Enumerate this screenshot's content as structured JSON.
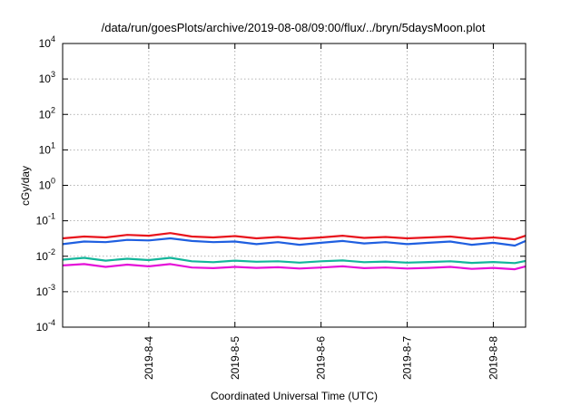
{
  "chart_data": {
    "type": "line",
    "title": "/data/run/goesPlots/archive/2019-08-08/09:00/flux/../bryn/5daysMoon.plot",
    "xlabel": "Coordinated Universal Time (UTC)",
    "ylabel": "cGy/day",
    "yscale": "log",
    "ylim": [
      0.0001,
      10000
    ],
    "xlim": [
      "2019-08-03T00:00",
      "2019-08-08T09:00"
    ],
    "grid": true,
    "y_ticks": [
      {
        "value": 0.0001,
        "base": "10",
        "exp": "-4"
      },
      {
        "value": 0.001,
        "base": "10",
        "exp": "-3"
      },
      {
        "value": 0.01,
        "base": "10",
        "exp": "-2"
      },
      {
        "value": 0.1,
        "base": "10",
        "exp": "-1"
      },
      {
        "value": 1,
        "base": "10",
        "exp": "0"
      },
      {
        "value": 10,
        "base": "10",
        "exp": "1"
      },
      {
        "value": 100,
        "base": "10",
        "exp": "2"
      },
      {
        "value": 1000,
        "base": "10",
        "exp": "3"
      },
      {
        "value": 10000,
        "base": "10",
        "exp": "4"
      }
    ],
    "x_ticks": [
      {
        "value": "2019-08-04T00:00",
        "label": "2019-8-4"
      },
      {
        "value": "2019-08-05T00:00",
        "label": "2019-8-5"
      },
      {
        "value": "2019-08-06T00:00",
        "label": "2019-8-6"
      },
      {
        "value": "2019-08-07T00:00",
        "label": "2019-8-7"
      },
      {
        "value": "2019-08-08T00:00",
        "label": "2019-8-8"
      }
    ],
    "series": [
      {
        "color": "#e8141c",
        "x": [
          "2019-08-03T00:00",
          "2019-08-03T06:00",
          "2019-08-03T12:00",
          "2019-08-03T18:00",
          "2019-08-04T00:00",
          "2019-08-04T06:00",
          "2019-08-04T12:00",
          "2019-08-04T18:00",
          "2019-08-05T00:00",
          "2019-08-05T06:00",
          "2019-08-05T12:00",
          "2019-08-05T18:00",
          "2019-08-06T00:00",
          "2019-08-06T06:00",
          "2019-08-06T12:00",
          "2019-08-06T18:00",
          "2019-08-07T00:00",
          "2019-08-07T06:00",
          "2019-08-07T12:00",
          "2019-08-07T18:00",
          "2019-08-08T00:00",
          "2019-08-08T06:00",
          "2019-08-08T09:00"
        ],
        "values": [
          0.032,
          0.036,
          0.034,
          0.04,
          0.038,
          0.045,
          0.036,
          0.034,
          0.037,
          0.032,
          0.035,
          0.031,
          0.034,
          0.038,
          0.033,
          0.035,
          0.032,
          0.034,
          0.036,
          0.031,
          0.034,
          0.03,
          0.038
        ]
      },
      {
        "color": "#1f5fe0",
        "x": [
          "2019-08-03T00:00",
          "2019-08-03T06:00",
          "2019-08-03T12:00",
          "2019-08-03T18:00",
          "2019-08-04T00:00",
          "2019-08-04T06:00",
          "2019-08-04T12:00",
          "2019-08-04T18:00",
          "2019-08-05T00:00",
          "2019-08-05T06:00",
          "2019-08-05T12:00",
          "2019-08-05T18:00",
          "2019-08-06T00:00",
          "2019-08-06T06:00",
          "2019-08-06T12:00",
          "2019-08-06T18:00",
          "2019-08-07T00:00",
          "2019-08-07T06:00",
          "2019-08-07T12:00",
          "2019-08-07T18:00",
          "2019-08-08T00:00",
          "2019-08-08T06:00",
          "2019-08-08T09:00"
        ],
        "values": [
          0.022,
          0.026,
          0.025,
          0.029,
          0.028,
          0.032,
          0.027,
          0.025,
          0.026,
          0.022,
          0.025,
          0.021,
          0.024,
          0.027,
          0.023,
          0.025,
          0.022,
          0.024,
          0.026,
          0.021,
          0.024,
          0.02,
          0.027
        ]
      },
      {
        "color": "#13b59a",
        "x": [
          "2019-08-03T00:00",
          "2019-08-03T06:00",
          "2019-08-03T12:00",
          "2019-08-03T18:00",
          "2019-08-04T00:00",
          "2019-08-04T06:00",
          "2019-08-04T12:00",
          "2019-08-04T18:00",
          "2019-08-05T00:00",
          "2019-08-05T06:00",
          "2019-08-05T12:00",
          "2019-08-05T18:00",
          "2019-08-06T00:00",
          "2019-08-06T06:00",
          "2019-08-06T12:00",
          "2019-08-06T18:00",
          "2019-08-07T00:00",
          "2019-08-07T06:00",
          "2019-08-07T12:00",
          "2019-08-07T18:00",
          "2019-08-08T00:00",
          "2019-08-08T06:00",
          "2019-08-08T09:00"
        ],
        "values": [
          0.008,
          0.009,
          0.0075,
          0.0085,
          0.0078,
          0.009,
          0.0072,
          0.0068,
          0.0075,
          0.007,
          0.0072,
          0.0066,
          0.0072,
          0.0076,
          0.0068,
          0.0071,
          0.0066,
          0.0069,
          0.0072,
          0.0065,
          0.0069,
          0.0064,
          0.0074
        ]
      },
      {
        "color": "#e512d8",
        "x": [
          "2019-08-03T00:00",
          "2019-08-03T06:00",
          "2019-08-03T12:00",
          "2019-08-03T18:00",
          "2019-08-04T00:00",
          "2019-08-04T06:00",
          "2019-08-04T12:00",
          "2019-08-04T18:00",
          "2019-08-05T00:00",
          "2019-08-05T06:00",
          "2019-08-05T12:00",
          "2019-08-05T18:00",
          "2019-08-06T00:00",
          "2019-08-06T06:00",
          "2019-08-06T12:00",
          "2019-08-06T18:00",
          "2019-08-07T00:00",
          "2019-08-07T06:00",
          "2019-08-07T12:00",
          "2019-08-07T18:00",
          "2019-08-08T00:00",
          "2019-08-08T06:00",
          "2019-08-08T09:00"
        ],
        "values": [
          0.0055,
          0.006,
          0.005,
          0.0058,
          0.0052,
          0.006,
          0.0048,
          0.0046,
          0.005,
          0.0047,
          0.0049,
          0.0045,
          0.0048,
          0.0052,
          0.0046,
          0.0048,
          0.0045,
          0.0047,
          0.005,
          0.0044,
          0.0047,
          0.0043,
          0.0052
        ]
      }
    ]
  }
}
